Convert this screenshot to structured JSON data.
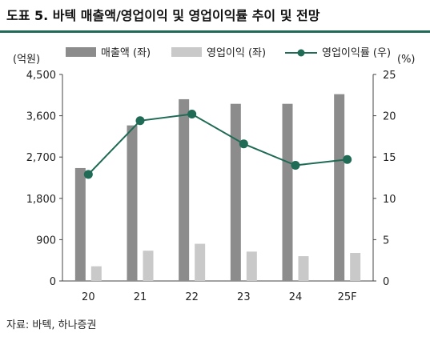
{
  "title": "도표 5. 바텍 매출액/영업이익 및 영업이익률 추이 및 전망",
  "source": "자료: 바텍, 하나증권",
  "colors": {
    "accent": "#1f6b55",
    "revenue": "#8c8c8c",
    "op_income": "#c9c9c9",
    "margin": "#1f6b55"
  },
  "chart_data": {
    "type": "bar",
    "categories": [
      "20",
      "21",
      "22",
      "23",
      "24",
      "25F"
    ],
    "series": [
      {
        "name": "매출액 (좌)",
        "kind": "bar",
        "axis": "left",
        "values": [
          2460,
          3390,
          3960,
          3860,
          3860,
          4070
        ]
      },
      {
        "name": "영업이익 (좌)",
        "kind": "bar",
        "axis": "left",
        "values": [
          320,
          660,
          810,
          640,
          540,
          610
        ]
      },
      {
        "name": "영업이익률 (우)",
        "kind": "line",
        "axis": "right",
        "values": [
          12.9,
          19.4,
          20.2,
          16.6,
          14.0,
          14.7
        ]
      }
    ],
    "yleft": {
      "label": "(억원)",
      "ylim": [
        0,
        4500
      ],
      "ticks": [
        "0",
        "900",
        "1,800",
        "2,700",
        "3,600",
        "4,500"
      ]
    },
    "yright": {
      "label": "(%)",
      "ylim": [
        0,
        25
      ],
      "ticks": [
        "0",
        "5",
        "10",
        "15",
        "20",
        "25"
      ]
    },
    "grid": false,
    "legend": "top"
  }
}
